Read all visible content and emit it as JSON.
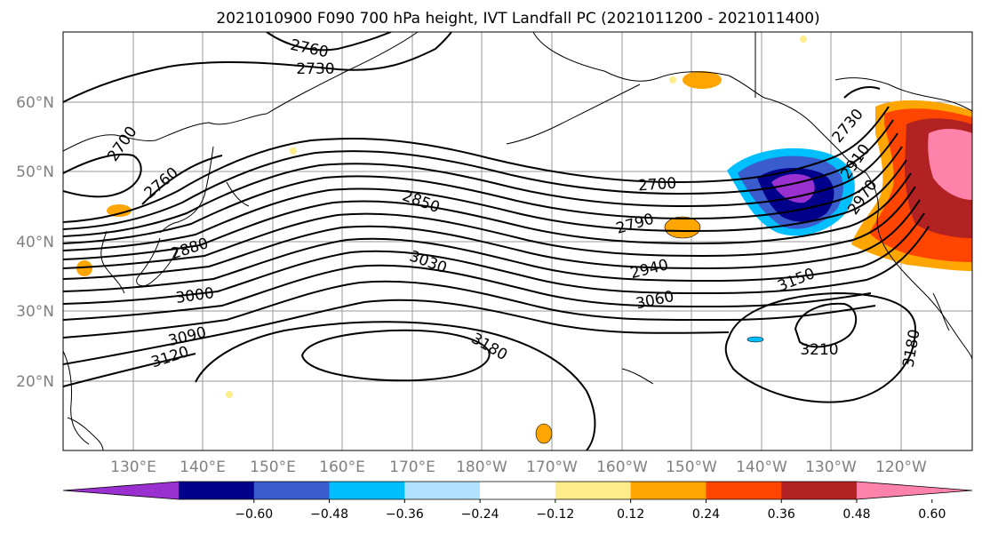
{
  "title": "2021010900 F090 700 hPa height, IVT Landfall PC (2021011200 - 2021011400)",
  "lat_ticks": [
    "60°N",
    "50°N",
    "40°N",
    "30°N",
    "20°N"
  ],
  "lon_ticks": [
    "130°E",
    "140°E",
    "150°E",
    "160°E",
    "170°E",
    "180°W",
    "170°W",
    "160°W",
    "150°W",
    "140°W",
    "130°W",
    "120°W"
  ],
  "contour_labels": [
    "2760",
    "2730",
    "2700",
    "2760",
    "2850",
    "2880",
    "3000",
    "3090",
    "3120",
    "3030",
    "3180",
    "2700",
    "2790",
    "2940",
    "3060",
    "3150",
    "3210",
    "3180",
    "2730",
    "2910",
    "2970"
  ],
  "colorbar": {
    "ticks": [
      "−0.60",
      "−0.48",
      "−0.36",
      "−0.24",
      "−0.12",
      "0.12",
      "0.24",
      "0.36",
      "0.48",
      "0.60"
    ],
    "colors": [
      "#9b30d0",
      "#00008b",
      "#3a5ccc",
      "#00bfff",
      "#b0e2ff",
      "#ffffff",
      "#ffec8b",
      "#ffa500",
      "#ff4500",
      "#b22222",
      "#ff82ab"
    ]
  }
}
